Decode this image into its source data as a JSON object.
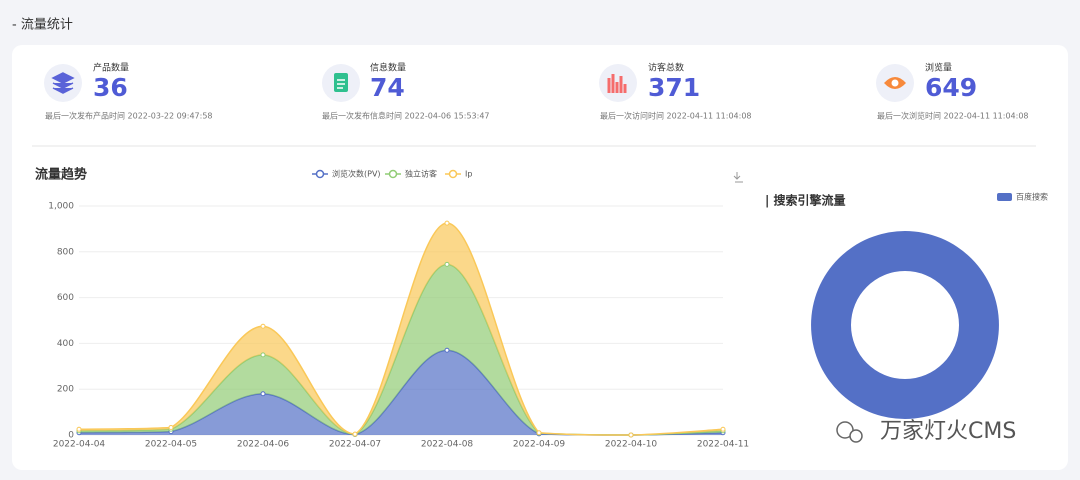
{
  "header": {
    "title": "- 流量统计"
  },
  "stats": [
    {
      "label": "产品数量",
      "value": 36,
      "note": "最后一次发布产品时间 2022-03-22 09:47:58"
    },
    {
      "label": "信息数量",
      "value": 74,
      "note": "最后一次发布信息时间 2022-04-06 15:53:47"
    },
    {
      "label": "访客总数",
      "value": 371,
      "note": "最后一次访问时间 2022-04-11 11:04:08"
    },
    {
      "label": "浏览量",
      "value": 649,
      "note": "最后一次浏览时间 2022-04-11 11:04:08"
    }
  ],
  "chart_data": [
    {
      "type": "stacked-area",
      "title": "流量趋势",
      "categories": [
        "2022-04-04",
        "2022-04-05",
        "2022-04-06",
        "2022-04-07",
        "2022-04-08",
        "2022-04-09",
        "2022-04-10",
        "2022-04-11"
      ],
      "series": [
        {
          "name": "浏览次数(PV)",
          "color": "#5470c6",
          "values": [
            10,
            15,
            180,
            2,
            370,
            5,
            0,
            10
          ]
        },
        {
          "name": "独立访客",
          "color": "#91cc75",
          "values": [
            8,
            10,
            170,
            1,
            375,
            3,
            0,
            8
          ]
        },
        {
          "name": "Ip",
          "color": "#fac858",
          "values": [
            7,
            8,
            125,
            1,
            180,
            2,
            0,
            7
          ]
        }
      ],
      "ylim": [
        0,
        1000
      ],
      "yticks": [
        0,
        200,
        400,
        600,
        800,
        {
          "value": 1000,
          "label": "1,000"
        }
      ],
      "grid": true
    },
    {
      "type": "donut",
      "title": "| 搜索引擎流量",
      "categories": [
        "百度搜索"
      ],
      "values": [
        100
      ],
      "colors": [
        "#5470c6"
      ]
    }
  ],
  "watermark": "万家灯火CMS"
}
